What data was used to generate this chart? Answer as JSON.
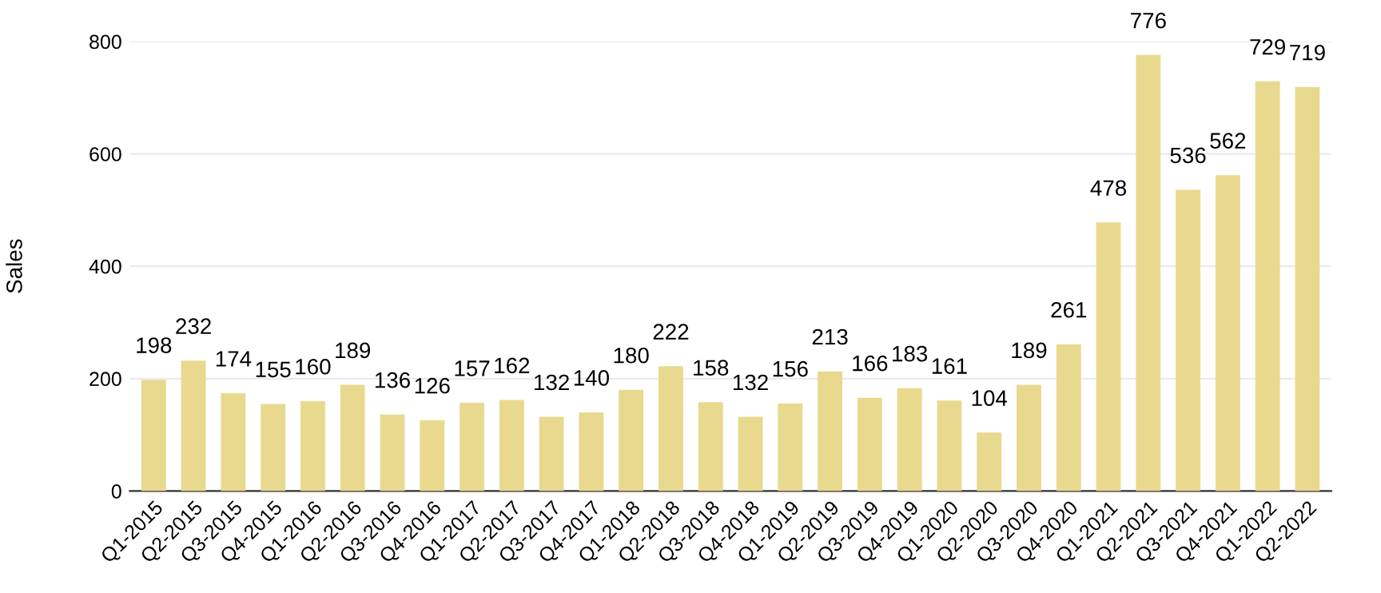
{
  "chart_data": {
    "type": "bar",
    "ylabel": "Sales",
    "categories": [
      "Q1-2015",
      "Q2-2015",
      "Q3-2015",
      "Q4-2015",
      "Q1-2016",
      "Q2-2016",
      "Q3-2016",
      "Q4-2016",
      "Q1-2017",
      "Q2-2017",
      "Q3-2017",
      "Q4-2017",
      "Q1-2018",
      "Q2-2018",
      "Q3-2018",
      "Q4-2018",
      "Q1-2019",
      "Q2-2019",
      "Q3-2019",
      "Q4-2019",
      "Q1-2020",
      "Q2-2020",
      "Q3-2020",
      "Q4-2020",
      "Q1-2021",
      "Q2-2021",
      "Q3-2021",
      "Q4-2021",
      "Q1-2022",
      "Q2-2022"
    ],
    "values": [
      198,
      232,
      174,
      155,
      160,
      189,
      136,
      126,
      157,
      162,
      132,
      140,
      180,
      222,
      158,
      132,
      156,
      213,
      166,
      183,
      161,
      104,
      189,
      261,
      478,
      776,
      536,
      562,
      729,
      719
    ],
    "color": "#e8d98f",
    "ylim": [
      0,
      800
    ],
    "yticks": [
      0,
      200,
      400,
      600,
      800
    ],
    "grid": "y",
    "data_labels": true
  }
}
